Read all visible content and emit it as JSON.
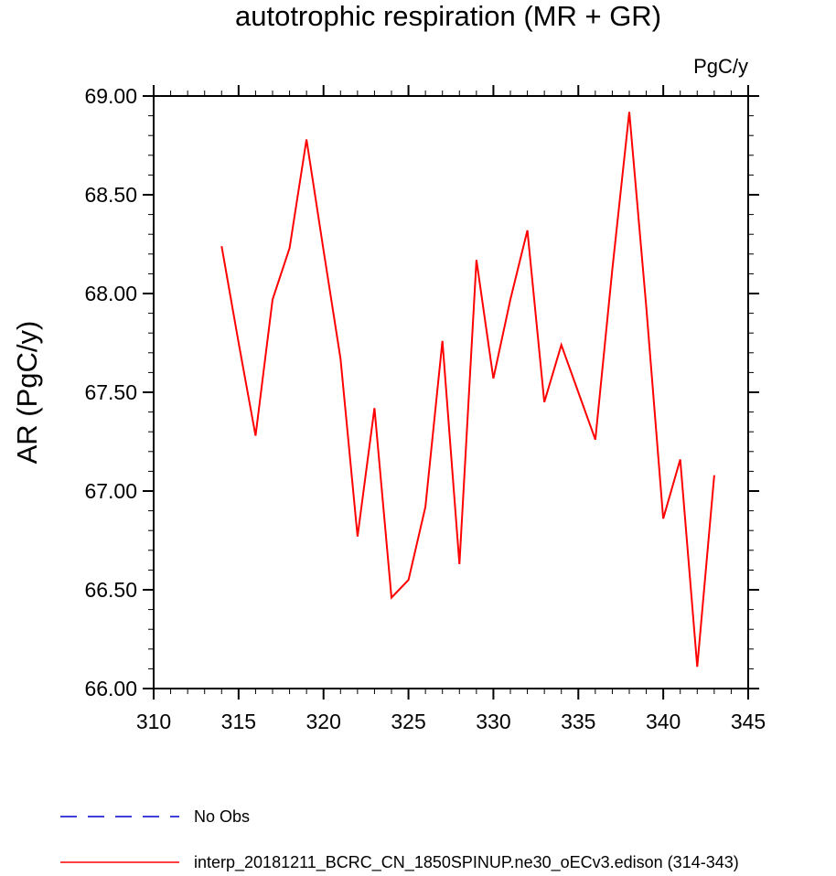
{
  "chart_data": {
    "type": "line",
    "title": "autotrophic respiration (MR + GR)",
    "units_label": "PgC/y",
    "xlabel": "",
    "ylabel": "AR  (PgC/y)",
    "xlim": [
      310,
      345
    ],
    "ylim": [
      66.0,
      69.0
    ],
    "x_ticks": [
      310,
      315,
      320,
      325,
      330,
      335,
      340,
      345
    ],
    "x_tick_labels": [
      "310",
      "315",
      "320",
      "325",
      "330",
      "335",
      "340",
      "345"
    ],
    "y_ticks": [
      66.0,
      66.5,
      67.0,
      67.5,
      68.0,
      68.5,
      69.0
    ],
    "y_tick_labels": [
      "66.00",
      "66.50",
      "67.00",
      "67.50",
      "68.00",
      "68.50",
      "69.00"
    ],
    "grid": false,
    "legend_position": "bottom",
    "series": [
      {
        "name": "interp_20181211_BCRC_CN_1850SPINUP.ne30_oECv3.edison (314-343)",
        "color": "#ff0000",
        "dash": "solid",
        "x": [
          314,
          315,
          316,
          317,
          318,
          319,
          320,
          321,
          322,
          323,
          324,
          325,
          326,
          327,
          328,
          329,
          330,
          331,
          332,
          333,
          334,
          335,
          336,
          337,
          338,
          339,
          340,
          341,
          342,
          343
        ],
        "y": [
          68.24,
          67.75,
          67.28,
          67.97,
          68.23,
          68.78,
          68.22,
          67.67,
          66.77,
          67.42,
          66.46,
          66.55,
          66.92,
          67.76,
          66.63,
          68.17,
          67.57,
          67.97,
          68.32,
          67.45,
          67.74,
          67.5,
          67.26,
          68.12,
          68.92,
          67.93,
          66.86,
          67.16,
          66.11,
          67.08
        ]
      }
    ],
    "legend": [
      {
        "label": "No Obs",
        "color": "#0000cc",
        "dash": "dashed"
      },
      {
        "label": "interp_20181211_BCRC_CN_1850SPINUP.ne30_oECv3.edison (314-343)",
        "color": "#ff0000",
        "dash": "solid"
      }
    ]
  }
}
